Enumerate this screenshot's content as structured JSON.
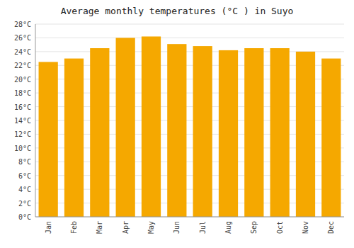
{
  "chart_data": {
    "type": "bar",
    "title": "Average monthly temperatures (°C ) in Suyo",
    "categories": [
      "Jan",
      "Feb",
      "Mar",
      "Apr",
      "May",
      "Jun",
      "Jul",
      "Aug",
      "Sep",
      "Oct",
      "Nov",
      "Dec"
    ],
    "values": [
      22.5,
      23.0,
      24.5,
      26.0,
      26.2,
      25.1,
      24.8,
      24.2,
      24.5,
      24.5,
      24.0,
      23.0
    ],
    "color": "#F5A800",
    "ylim": [
      0,
      28
    ],
    "yticks": [
      {
        "value": 0,
        "label": "0°C"
      },
      {
        "value": 2,
        "label": "2°C"
      },
      {
        "value": 4,
        "label": "4°C"
      },
      {
        "value": 6,
        "label": "6°C"
      },
      {
        "value": 8,
        "label": "8°C"
      },
      {
        "value": 10,
        "label": "10°C"
      },
      {
        "value": 12,
        "label": "12°C"
      },
      {
        "value": 14,
        "label": "14°C"
      },
      {
        "value": 16,
        "label": "16°C"
      },
      {
        "value": 18,
        "label": "18°C"
      },
      {
        "value": 20,
        "label": "20°C"
      },
      {
        "value": 22,
        "label": "22°C"
      },
      {
        "value": 24,
        "label": "24°C"
      },
      {
        "value": 26,
        "label": "26°C"
      },
      {
        "value": 28,
        "label": "28°C"
      }
    ],
    "grid": true
  }
}
